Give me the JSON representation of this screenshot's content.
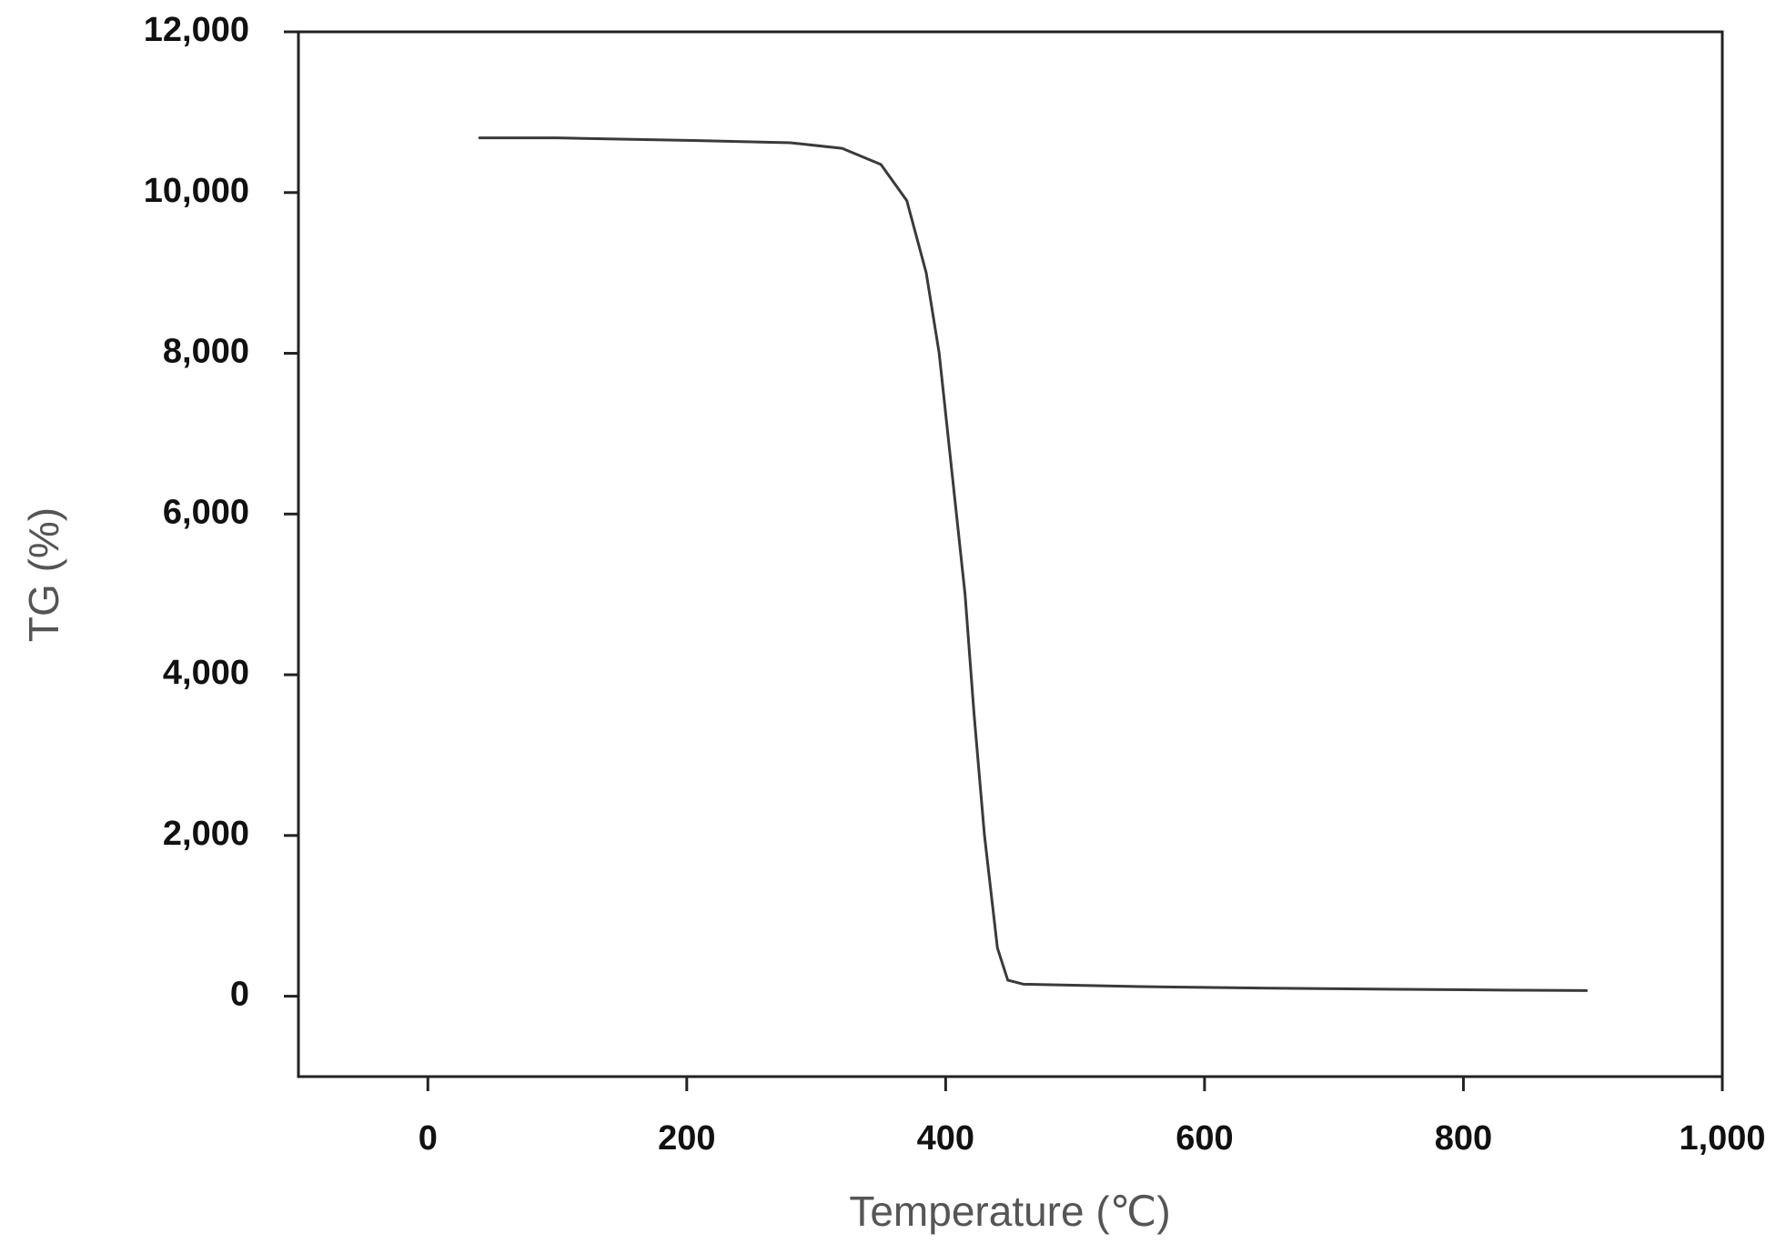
{
  "chart_data": {
    "type": "line",
    "x_label": "Temperature (℃)",
    "y_label": "TG (%)",
    "x": [
      40,
      100,
      200,
      280,
      320,
      350,
      370,
      385,
      395,
      405,
      415,
      422,
      430,
      440,
      448,
      460,
      550,
      650,
      800,
      895
    ],
    "series": [
      {
        "name": "TG",
        "color": "#3a3a3a",
        "values": [
          10680,
          10680,
          10650,
          10620,
          10550,
          10350,
          9900,
          9000,
          8000,
          6500,
          5000,
          3500,
          2000,
          600,
          200,
          150,
          120,
          100,
          80,
          70
        ]
      }
    ],
    "xlim": [
      -100,
      1000
    ],
    "xticks": [
      0,
      200,
      400,
      600,
      800,
      {
        "value": 1000,
        "label": "1,000"
      }
    ],
    "ylim": [
      -1000,
      12000
    ],
    "yticks": [
      0,
      {
        "value": 2000,
        "label": "2,000"
      },
      {
        "value": 4000,
        "label": "4,000"
      },
      {
        "value": 6000,
        "label": "6,000"
      },
      {
        "value": 8000,
        "label": "8,000"
      },
      {
        "value": 10000,
        "label": "10,000"
      },
      {
        "value": 12000,
        "label": "12,000"
      }
    ],
    "grid": false
  }
}
